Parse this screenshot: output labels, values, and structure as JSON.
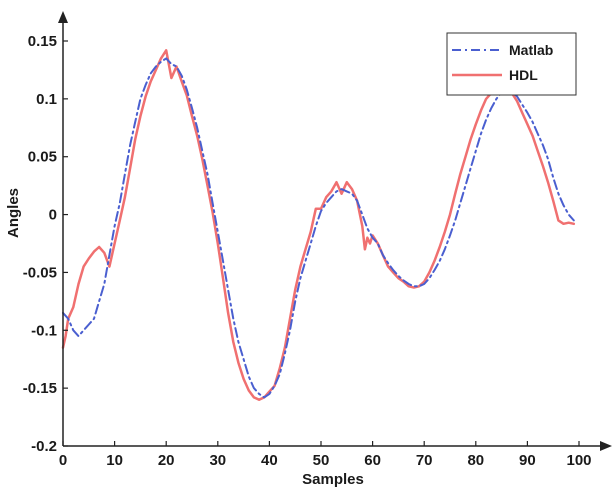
{
  "chart_data": {
    "type": "line",
    "title": "",
    "xlabel": "Samples",
    "ylabel": "Angles",
    "xlim": [
      0,
      100
    ],
    "ylim": [
      -0.2,
      0.15
    ],
    "x_ticks": [
      0,
      10,
      20,
      30,
      40,
      50,
      60,
      70,
      80,
      90,
      100
    ],
    "y_ticks": [
      -0.2,
      -0.15,
      -0.1,
      -0.05,
      0,
      0.05,
      0.1,
      0.15
    ],
    "x_tick_labels": [
      "0",
      "10",
      "20",
      "30",
      "40",
      "50",
      "60",
      "70",
      "80",
      "90",
      "100"
    ],
    "y_tick_labels": [
      "-0.2",
      "-0.15",
      "-0.1",
      "-0.05",
      "0",
      "0.05",
      "0.1",
      "0.15"
    ],
    "grid": false,
    "legend_position": "top-right",
    "series": [
      {
        "name": "Matlab",
        "color": "#4a5fd0",
        "style": "dashdot",
        "x": [
          0,
          1,
          2,
          3,
          4,
          5,
          6,
          7,
          8,
          9,
          10,
          11,
          12,
          13,
          14,
          15,
          16,
          17,
          18,
          19,
          20,
          21,
          22,
          23,
          24,
          25,
          26,
          27,
          28,
          29,
          30,
          31,
          32,
          33,
          34,
          35,
          36,
          37,
          38,
          39,
          40,
          41,
          42,
          43,
          44,
          45,
          46,
          47,
          48,
          49,
          50,
          51,
          52,
          53,
          54,
          55,
          56,
          57,
          58,
          59,
          60,
          61,
          62,
          63,
          64,
          65,
          66,
          67,
          68,
          69,
          70,
          71,
          72,
          73,
          74,
          75,
          76,
          77,
          78,
          79,
          80,
          81,
          82,
          83,
          84,
          85,
          86,
          87,
          88,
          89,
          90,
          91,
          92,
          93,
          94,
          95,
          96,
          97,
          98,
          99
        ],
        "y": [
          -0.085,
          -0.09,
          -0.1,
          -0.105,
          -0.1,
          -0.095,
          -0.09,
          -0.075,
          -0.06,
          -0.035,
          -0.01,
          0.01,
          0.035,
          0.06,
          0.08,
          0.1,
          0.112,
          0.122,
          0.128,
          0.132,
          0.135,
          0.13,
          0.128,
          0.12,
          0.108,
          0.092,
          0.075,
          0.055,
          0.035,
          0.01,
          -0.015,
          -0.04,
          -0.065,
          -0.09,
          -0.11,
          -0.125,
          -0.14,
          -0.15,
          -0.155,
          -0.158,
          -0.155,
          -0.148,
          -0.138,
          -0.12,
          -0.1,
          -0.075,
          -0.055,
          -0.04,
          -0.025,
          -0.01,
          0.003,
          0.01,
          0.015,
          0.02,
          0.022,
          0.02,
          0.018,
          0.012,
          0.0,
          -0.012,
          -0.02,
          -0.025,
          -0.035,
          -0.042,
          -0.048,
          -0.053,
          -0.057,
          -0.06,
          -0.062,
          -0.062,
          -0.06,
          -0.055,
          -0.048,
          -0.04,
          -0.03,
          -0.018,
          -0.005,
          0.01,
          0.025,
          0.04,
          0.055,
          0.07,
          0.082,
          0.092,
          0.1,
          0.106,
          0.108,
          0.106,
          0.102,
          0.095,
          0.088,
          0.08,
          0.07,
          0.06,
          0.048,
          0.032,
          0.018,
          0.008,
          0.0,
          -0.005
        ]
      },
      {
        "name": "HDL",
        "color": "#f07070",
        "style": "solid",
        "x": [
          0,
          0.5,
          1,
          2,
          3,
          4,
          5,
          6,
          7,
          8,
          9,
          10,
          11,
          12,
          13,
          14,
          15,
          16,
          17,
          18,
          19,
          20,
          21,
          22,
          23,
          24,
          25,
          26,
          27,
          28,
          29,
          30,
          31,
          32,
          33,
          34,
          35,
          36,
          37,
          38,
          39,
          40,
          41,
          42,
          43,
          44,
          45,
          46,
          47,
          48,
          49,
          50,
          51,
          52,
          53,
          54,
          55,
          56,
          57,
          58,
          58.5,
          59,
          59.5,
          60,
          61,
          62,
          63,
          64,
          65,
          66,
          67,
          68,
          69,
          70,
          71,
          72,
          73,
          74,
          75,
          76,
          77,
          78,
          79,
          80,
          81,
          82,
          83,
          84,
          85,
          86,
          87,
          88,
          89,
          90,
          91,
          92,
          93,
          94,
          95,
          96,
          97,
          98,
          99
        ],
        "y": [
          -0.115,
          -0.105,
          -0.09,
          -0.08,
          -0.06,
          -0.045,
          -0.038,
          -0.032,
          -0.028,
          -0.033,
          -0.045,
          -0.025,
          -0.005,
          0.015,
          0.04,
          0.065,
          0.085,
          0.102,
          0.115,
          0.125,
          0.135,
          0.142,
          0.118,
          0.128,
          0.115,
          0.103,
          0.085,
          0.068,
          0.048,
          0.025,
          0.002,
          -0.025,
          -0.055,
          -0.085,
          -0.11,
          -0.128,
          -0.142,
          -0.152,
          -0.158,
          -0.16,
          -0.158,
          -0.153,
          -0.148,
          -0.133,
          -0.115,
          -0.09,
          -0.065,
          -0.045,
          -0.03,
          -0.015,
          0.005,
          0.005,
          0.015,
          0.02,
          0.028,
          0.018,
          0.028,
          0.022,
          0.012,
          -0.01,
          -0.03,
          -0.02,
          -0.025,
          -0.018,
          -0.025,
          -0.035,
          -0.045,
          -0.05,
          -0.055,
          -0.058,
          -0.062,
          -0.063,
          -0.062,
          -0.058,
          -0.05,
          -0.04,
          -0.028,
          -0.015,
          0.0,
          0.018,
          0.035,
          0.05,
          0.065,
          0.078,
          0.09,
          0.1,
          0.105,
          0.108,
          0.11,
          0.108,
          0.105,
          0.098,
          0.088,
          0.078,
          0.068,
          0.055,
          0.042,
          0.028,
          0.012,
          -0.005,
          -0.008,
          -0.007,
          -0.008
        ]
      }
    ]
  }
}
